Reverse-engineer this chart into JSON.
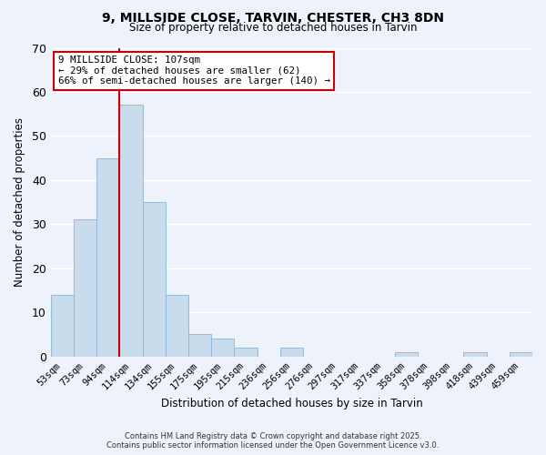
{
  "title": "9, MILLSIDE CLOSE, TARVIN, CHESTER, CH3 8DN",
  "subtitle": "Size of property relative to detached houses in Tarvin",
  "xlabel": "Distribution of detached houses by size in Tarvin",
  "ylabel": "Number of detached properties",
  "bar_color": "#c8dcee",
  "bar_edge_color": "#8ab4d4",
  "background_color": "#eef2fa",
  "grid_color": "#ffffff",
  "categories": [
    "53sqm",
    "73sqm",
    "94sqm",
    "114sqm",
    "134sqm",
    "155sqm",
    "175sqm",
    "195sqm",
    "215sqm",
    "236sqm",
    "256sqm",
    "276sqm",
    "297sqm",
    "317sqm",
    "337sqm",
    "358sqm",
    "378sqm",
    "398sqm",
    "418sqm",
    "439sqm",
    "459sqm"
  ],
  "values": [
    14,
    31,
    45,
    57,
    35,
    14,
    5,
    4,
    2,
    0,
    2,
    0,
    0,
    0,
    0,
    1,
    0,
    0,
    1,
    0,
    1
  ],
  "ylim": [
    0,
    70
  ],
  "yticks": [
    0,
    10,
    20,
    30,
    40,
    50,
    60,
    70
  ],
  "property_line_color": "#cc0000",
  "annotation_title": "9 MILLSIDE CLOSE: 107sqm",
  "annotation_line1": "← 29% of detached houses are smaller (62)",
  "annotation_line2": "66% of semi-detached houses are larger (140) →",
  "annotation_box_edgecolor": "#cc0000",
  "footer_line1": "Contains HM Land Registry data © Crown copyright and database right 2025.",
  "footer_line2": "Contains public sector information licensed under the Open Government Licence v3.0."
}
